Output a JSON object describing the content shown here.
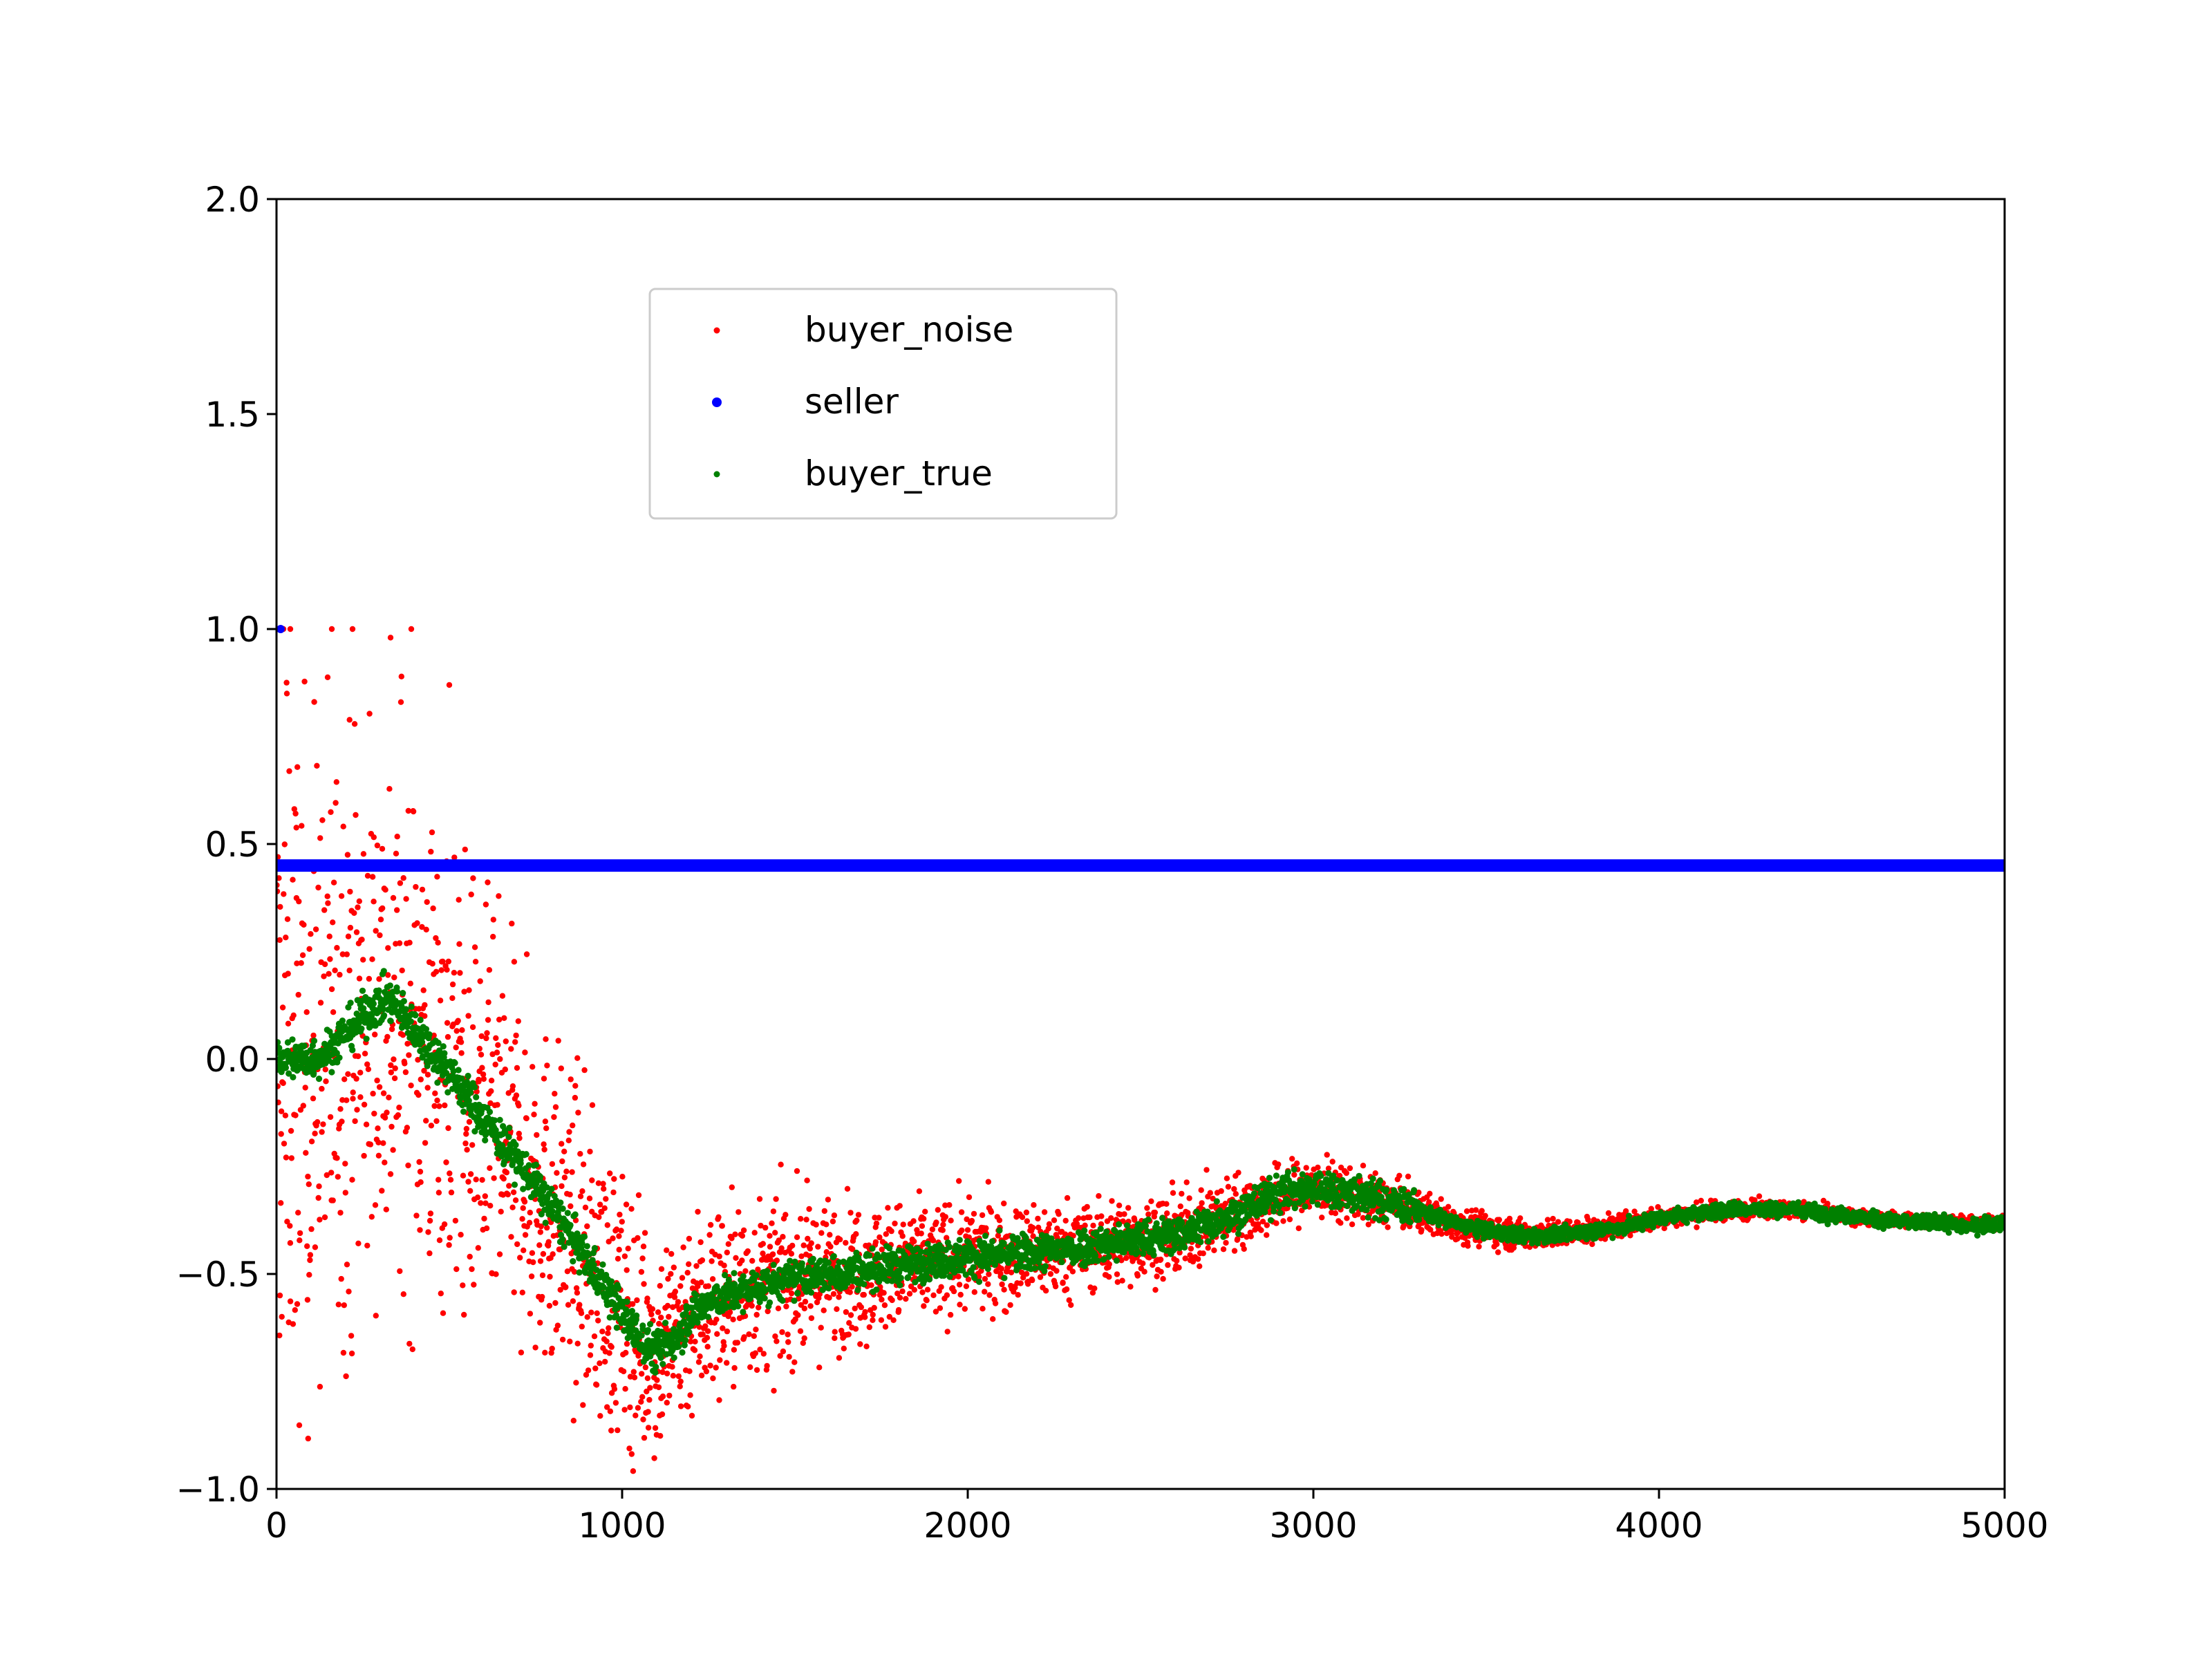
{
  "chart_data": {
    "type": "scatter",
    "title": "",
    "xlabel": "",
    "ylabel": "",
    "xlim": [
      0,
      5000
    ],
    "ylim": [
      -1.0,
      2.0
    ],
    "xticks": [
      "0",
      "1000",
      "2000",
      "3000",
      "4000",
      "5000"
    ],
    "yticks": [
      "−1.0",
      "−0.5",
      "0.0",
      "0.5",
      "1.0",
      "1.5",
      "2.0"
    ],
    "grid": false,
    "legend": {
      "placement": "upper-center",
      "entries": [
        {
          "name": "buyer_noise",
          "color": "#ff0000"
        },
        {
          "name": "seller",
          "color": "#0000ff"
        },
        {
          "name": "buyer_true",
          "color": "#008000"
        }
      ]
    },
    "series": [
      {
        "name": "seller",
        "color": "#0000ff",
        "x": [
          0,
          5000
        ],
        "y": [
          0.45,
          0.45
        ],
        "note_points": [
          [
            0,
            1.0
          ]
        ]
      },
      {
        "name": "buyer_true",
        "color": "#008000",
        "x": [
          0,
          100,
          150,
          200,
          250,
          300,
          320,
          350,
          400,
          500,
          600,
          700,
          800,
          900,
          1000,
          1050,
          1100,
          1150,
          1200,
          1300,
          1400,
          1500,
          1600,
          1800,
          2000,
          2200,
          2400,
          2600,
          2800,
          2900,
          3000,
          3100,
          3200,
          3300,
          3400,
          3500,
          3600,
          3700,
          3800,
          3900,
          4000,
          4100,
          4200,
          4300,
          4400,
          4500,
          4600,
          4700,
          4800,
          4900,
          5000
        ],
        "y": [
          0.0,
          0.0,
          0.02,
          0.06,
          0.1,
          0.13,
          0.14,
          0.12,
          0.07,
          -0.03,
          -0.14,
          -0.24,
          -0.35,
          -0.47,
          -0.59,
          -0.65,
          -0.68,
          -0.65,
          -0.59,
          -0.55,
          -0.53,
          -0.51,
          -0.5,
          -0.48,
          -0.46,
          -0.45,
          -0.43,
          -0.41,
          -0.35,
          -0.31,
          -0.3,
          -0.31,
          -0.33,
          -0.35,
          -0.38,
          -0.4,
          -0.41,
          -0.41,
          -0.4,
          -0.39,
          -0.37,
          -0.36,
          -0.35,
          -0.35,
          -0.35,
          -0.36,
          -0.37,
          -0.38,
          -0.38,
          -0.39,
          -0.38
        ]
      },
      {
        "name": "buyer_noise",
        "color": "#ff0000",
        "x": [
          0,
          100,
          200,
          300,
          400,
          500,
          600,
          700,
          800,
          900,
          1000,
          1100,
          1200,
          1300,
          1400,
          1500,
          1600,
          1800,
          2000,
          2200,
          2400,
          2600,
          2800,
          3000,
          3200,
          3400,
          3600,
          3800,
          4000,
          4200,
          4400,
          4600,
          4800,
          5000
        ],
        "y": [
          0.0,
          0.0,
          0.06,
          0.13,
          0.07,
          -0.03,
          -0.14,
          -0.24,
          -0.35,
          -0.47,
          -0.59,
          -0.68,
          -0.59,
          -0.55,
          -0.53,
          -0.51,
          -0.5,
          -0.48,
          -0.46,
          -0.45,
          -0.43,
          -0.41,
          -0.35,
          -0.3,
          -0.33,
          -0.38,
          -0.41,
          -0.4,
          -0.37,
          -0.35,
          -0.35,
          -0.37,
          -0.38,
          -0.38
        ],
        "spread": [
          0.55,
          0.55,
          0.5,
          0.45,
          0.42,
          0.38,
          0.35,
          0.3,
          0.27,
          0.25,
          0.22,
          0.18,
          0.17,
          0.16,
          0.14,
          0.13,
          0.12,
          0.1,
          0.09,
          0.08,
          0.07,
          0.065,
          0.06,
          0.05,
          0.04,
          0.03,
          0.025,
          0.02,
          0.018,
          0.016,
          0.014,
          0.012,
          0.012,
          0.01
        ],
        "points_per_unit": 0.8,
        "extra_points": [
          [
            20,
            1.0
          ],
          [
            40,
            1.0
          ],
          [
            160,
            1.0
          ],
          [
            220,
            1.0
          ],
          [
            330,
            0.98
          ],
          [
            390,
            1.0
          ],
          [
            30,
            0.85
          ],
          [
            360,
            0.83
          ],
          [
            500,
            0.87
          ],
          [
            10,
            -0.55
          ],
          [
            60,
            -0.57
          ]
        ]
      }
    ]
  }
}
